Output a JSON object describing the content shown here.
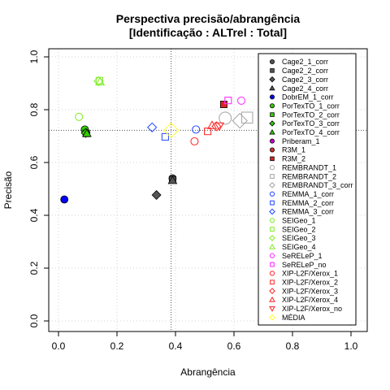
{
  "chart_data": {
    "type": "scatter",
    "title": [
      "Perspectiva precisão/abrangência",
      "[Identificação : ALTrel : Total]"
    ],
    "xlabel": "Abrangência",
    "ylabel": "Precisão",
    "xlim": [
      0,
      1
    ],
    "ylim": [
      0,
      1
    ],
    "x_ticks": [
      "0.0",
      "0.2",
      "0.4",
      "0.6",
      "0.8",
      "1.0"
    ],
    "y_ticks": [
      "0.0",
      "0.2",
      "0.4",
      "0.6",
      "0.8",
      "1.0"
    ],
    "grid": true,
    "reference_lines": {
      "x": 0.385,
      "y": 0.722
    },
    "legend_position": "top-right",
    "series": [
      {
        "name": "Cage2_1_corr",
        "shape": "circle",
        "filled": true,
        "color": "#555555",
        "points": [
          [
            0.39,
            0.54
          ]
        ]
      },
      {
        "name": "Cage2_2_corr",
        "shape": "square",
        "filled": true,
        "color": "#555555",
        "points": [
          [
            0.39,
            0.535
          ]
        ]
      },
      {
        "name": "Cage2_3_corr",
        "shape": "diamond",
        "filled": true,
        "color": "#555555",
        "points": [
          [
            0.335,
            0.477
          ]
        ]
      },
      {
        "name": "Cage2_4_corr",
        "shape": "triangle",
        "filled": true,
        "color": "#555555",
        "points": [
          [
            0.39,
            0.532
          ]
        ]
      },
      {
        "name": "DobrEM_1_corr",
        "shape": "circle",
        "filled": true,
        "color": "#0000ff",
        "points": [
          [
            0.02,
            0.46
          ]
        ]
      },
      {
        "name": "PorTexTO_1_corr",
        "shape": "circle",
        "filled": true,
        "color": "#33cc00",
        "points": [
          [
            0.09,
            0.725
          ]
        ]
      },
      {
        "name": "PorTexTO_2_corr",
        "shape": "square",
        "filled": true,
        "color": "#33cc00",
        "points": [
          [
            0.095,
            0.71
          ]
        ]
      },
      {
        "name": "PorTexTO_3_corr",
        "shape": "diamond",
        "filled": true,
        "color": "#33cc00",
        "points": [
          [
            0.093,
            0.712
          ]
        ]
      },
      {
        "name": "PorTexTO_4_corr",
        "shape": "triangle",
        "filled": true,
        "color": "#33cc00",
        "points": [
          [
            0.097,
            0.71
          ]
        ]
      },
      {
        "name": "Priberam_1",
        "shape": "circle",
        "filled": true,
        "color": "#cc00cc",
        "points": []
      },
      {
        "name": "R3M_1",
        "shape": "circle",
        "filled": true,
        "color": "#cc3333",
        "points": []
      },
      {
        "name": "R3M_2",
        "shape": "square",
        "filled": true,
        "color": "#dd2222",
        "points": [
          [
            0.565,
            0.82
          ]
        ]
      },
      {
        "name": "REMBRANDT_1",
        "shape": "circle",
        "filled": false,
        "color": "#aaaaaa",
        "points": [
          [
            0.57,
            0.768
          ]
        ]
      },
      {
        "name": "REMBRANDT_2",
        "shape": "square",
        "filled": false,
        "color": "#aaaaaa",
        "points": [
          [
            0.645,
            0.77
          ]
        ]
      },
      {
        "name": "REMBRANDT_3_corr",
        "shape": "diamond",
        "filled": false,
        "color": "#aaaaaa",
        "points": [
          [
            0.62,
            0.758
          ]
        ]
      },
      {
        "name": "REMMA_1_corr",
        "shape": "circle",
        "filled": false,
        "color": "#3355ff",
        "points": [
          [
            0.47,
            0.725
          ]
        ]
      },
      {
        "name": "REMMA_2_corr",
        "shape": "square",
        "filled": false,
        "color": "#3355ff",
        "points": [
          [
            0.365,
            0.697
          ]
        ]
      },
      {
        "name": "REMMA_3_corr",
        "shape": "diamond",
        "filled": false,
        "color": "#3355ff",
        "points": [
          [
            0.32,
            0.733
          ]
        ]
      },
      {
        "name": "SEIGeo_1",
        "shape": "circle",
        "filled": false,
        "color": "#88ee33",
        "points": [
          [
            0.07,
            0.773
          ]
        ]
      },
      {
        "name": "SEIGeo_2",
        "shape": "square",
        "filled": false,
        "color": "#88ee33",
        "points": [
          [
            0.14,
            0.91
          ]
        ]
      },
      {
        "name": "SEIGeo_3",
        "shape": "diamond",
        "filled": false,
        "color": "#88ee33",
        "points": [
          [
            0.137,
            0.908
          ]
        ]
      },
      {
        "name": "SEIGeo_4",
        "shape": "triangle",
        "filled": false,
        "color": "#88ee33",
        "points": [
          [
            0.142,
            0.905
          ]
        ]
      },
      {
        "name": "SeRELeP_1",
        "shape": "circle",
        "filled": false,
        "color": "#ff33ff",
        "points": [
          [
            0.625,
            0.834
          ]
        ]
      },
      {
        "name": "SeRELeP_no",
        "shape": "square",
        "filled": false,
        "color": "#ff33ff",
        "points": [
          [
            0.58,
            0.835
          ]
        ]
      },
      {
        "name": "XIP-L2F/Xerox_1",
        "shape": "circle",
        "filled": false,
        "color": "#ff3333",
        "points": [
          [
            0.465,
            0.68
          ]
        ]
      },
      {
        "name": "XIP-L2F/Xerox_2",
        "shape": "square",
        "filled": false,
        "color": "#ff3333",
        "points": [
          [
            0.51,
            0.718
          ]
        ]
      },
      {
        "name": "XIP-L2F/Xerox_3",
        "shape": "diamond",
        "filled": false,
        "color": "#ff3333",
        "points": [
          [
            0.54,
            0.737
          ]
        ]
      },
      {
        "name": "XIP-L2F/Xerox_4",
        "shape": "triangle",
        "filled": false,
        "color": "#ff3333",
        "points": [
          [
            0.525,
            0.74
          ]
        ]
      },
      {
        "name": "XIP-L2F/Xerox_no",
        "shape": "triangle-down",
        "filled": false,
        "color": "#ff3333",
        "points": [
          [
            0.55,
            0.738
          ]
        ]
      },
      {
        "name": "MÉDIA",
        "shape": "diamond",
        "filled": false,
        "color": "#ffff33",
        "points": [
          [
            0.385,
            0.722
          ]
        ]
      }
    ]
  }
}
